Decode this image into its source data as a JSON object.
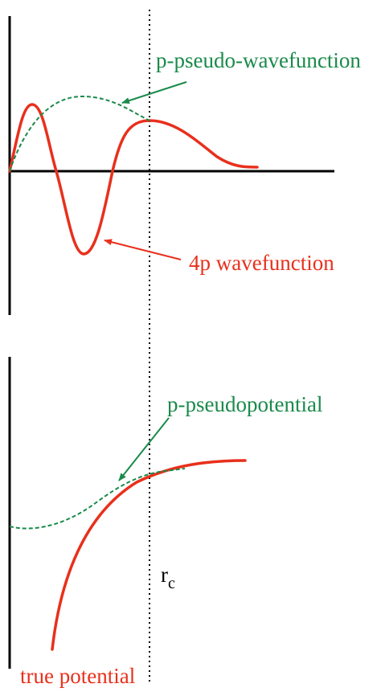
{
  "labels": {
    "pseudo_wavefunction": "p-pseudo-wavefunction",
    "wavefunction_4p": "4p wavefunction",
    "pseudopotential": "p-pseudopotential",
    "true_potential": "true potential",
    "rc_base": "r",
    "rc_sub": "c"
  },
  "colors": {
    "pseudo": "#1a8a4a",
    "true": "#e8301c",
    "axis": "#000000"
  }
}
